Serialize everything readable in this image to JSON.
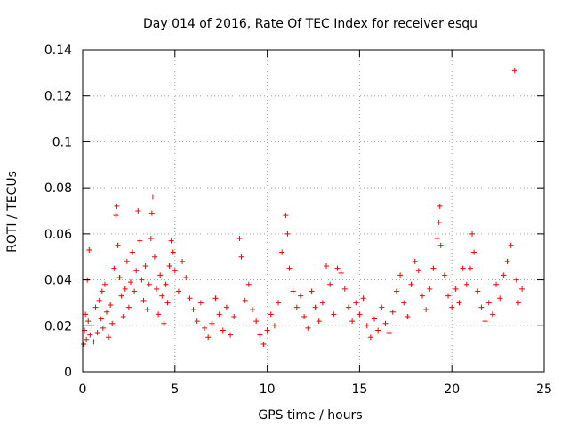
{
  "chart_data": {
    "type": "scatter",
    "title": "Day 014 of 2016, Rate Of TEC Index for receiver esqu",
    "xlabel": "GPS time / hours",
    "ylabel": "ROTI / TECUs",
    "xlim": [
      0,
      25
    ],
    "ylim": [
      0,
      0.14
    ],
    "xticks": [
      0,
      5,
      10,
      15,
      20,
      25
    ],
    "xtick_labels": [
      "0",
      "5",
      "10",
      "15",
      "20",
      "25"
    ],
    "yticks": [
      0,
      0.02,
      0.04,
      0.06,
      0.08,
      0.1,
      0.12,
      0.14
    ],
    "ytick_labels": [
      "0",
      "0.02",
      "0.04",
      "0.06",
      "0.08",
      "0.1",
      "0.12",
      "0.14"
    ],
    "grid": true,
    "marker": "plus",
    "color": "#ff0000",
    "series": [
      {
        "name": "ROTI",
        "points": [
          [
            0.05,
            0.012
          ],
          [
            0.1,
            0.018
          ],
          [
            0.15,
            0.025
          ],
          [
            0.2,
            0.014
          ],
          [
            0.25,
            0.04
          ],
          [
            0.3,
            0.022
          ],
          [
            0.35,
            0.053
          ],
          [
            0.4,
            0.016
          ],
          [
            0.5,
            0.02
          ],
          [
            0.6,
            0.013
          ],
          [
            0.7,
            0.028
          ],
          [
            0.8,
            0.017
          ],
          [
            0.9,
            0.031
          ],
          [
            1.0,
            0.023
          ],
          [
            1.05,
            0.035
          ],
          [
            1.1,
            0.019
          ],
          [
            1.2,
            0.038
          ],
          [
            1.3,
            0.026
          ],
          [
            1.4,
            0.015
          ],
          [
            1.5,
            0.029
          ],
          [
            1.6,
            0.021
          ],
          [
            1.7,
            0.045
          ],
          [
            1.8,
            0.068
          ],
          [
            1.85,
            0.072
          ],
          [
            1.9,
            0.055
          ],
          [
            2.0,
            0.041
          ],
          [
            2.1,
            0.033
          ],
          [
            2.2,
            0.024
          ],
          [
            2.3,
            0.036
          ],
          [
            2.4,
            0.048
          ],
          [
            2.5,
            0.028
          ],
          [
            2.6,
            0.039
          ],
          [
            2.7,
            0.052
          ],
          [
            2.8,
            0.035
          ],
          [
            2.9,
            0.044
          ],
          [
            3.0,
            0.07
          ],
          [
            3.1,
            0.057
          ],
          [
            3.2,
            0.04
          ],
          [
            3.3,
            0.031
          ],
          [
            3.4,
            0.046
          ],
          [
            3.5,
            0.027
          ],
          [
            3.6,
            0.038
          ],
          [
            3.7,
            0.058
          ],
          [
            3.75,
            0.069
          ],
          [
            3.8,
            0.076
          ],
          [
            3.9,
            0.05
          ],
          [
            4.0,
            0.036
          ],
          [
            4.1,
            0.025
          ],
          [
            4.2,
            0.042
          ],
          [
            4.3,
            0.033
          ],
          [
            4.4,
            0.021
          ],
          [
            4.5,
            0.038
          ],
          [
            4.6,
            0.03
          ],
          [
            4.7,
            0.046
          ],
          [
            4.8,
            0.057
          ],
          [
            4.9,
            0.052
          ],
          [
            5.0,
            0.044
          ],
          [
            5.2,
            0.035
          ],
          [
            5.4,
            0.048
          ],
          [
            5.6,
            0.041
          ],
          [
            5.8,
            0.032
          ],
          [
            6.0,
            0.027
          ],
          [
            6.2,
            0.022
          ],
          [
            6.4,
            0.03
          ],
          [
            6.6,
            0.019
          ],
          [
            6.8,
            0.015
          ],
          [
            7.0,
            0.021
          ],
          [
            7.2,
            0.032
          ],
          [
            7.4,
            0.025
          ],
          [
            7.6,
            0.018
          ],
          [
            7.8,
            0.028
          ],
          [
            8.0,
            0.016
          ],
          [
            8.2,
            0.024
          ],
          [
            8.5,
            0.058
          ],
          [
            8.6,
            0.05
          ],
          [
            8.8,
            0.031
          ],
          [
            9.0,
            0.038
          ],
          [
            9.2,
            0.027
          ],
          [
            9.4,
            0.022
          ],
          [
            9.6,
            0.016
          ],
          [
            9.8,
            0.012
          ],
          [
            10.0,
            0.018
          ],
          [
            10.2,
            0.025
          ],
          [
            10.4,
            0.02
          ],
          [
            10.6,
            0.03
          ],
          [
            10.8,
            0.052
          ],
          [
            11.0,
            0.068
          ],
          [
            11.1,
            0.06
          ],
          [
            11.2,
            0.045
          ],
          [
            11.4,
            0.035
          ],
          [
            11.6,
            0.028
          ],
          [
            11.8,
            0.033
          ],
          [
            12.0,
            0.024
          ],
          [
            12.2,
            0.019
          ],
          [
            12.4,
            0.035
          ],
          [
            12.6,
            0.028
          ],
          [
            12.8,
            0.022
          ],
          [
            13.0,
            0.03
          ],
          [
            13.2,
            0.046
          ],
          [
            13.4,
            0.038
          ],
          [
            13.6,
            0.025
          ],
          [
            13.8,
            0.045
          ],
          [
            14.0,
            0.043
          ],
          [
            14.2,
            0.036
          ],
          [
            14.4,
            0.028
          ],
          [
            14.6,
            0.022
          ],
          [
            14.8,
            0.03
          ],
          [
            15.0,
            0.025
          ],
          [
            15.2,
            0.032
          ],
          [
            15.4,
            0.02
          ],
          [
            15.6,
            0.015
          ],
          [
            15.8,
            0.023
          ],
          [
            16.0,
            0.018
          ],
          [
            16.2,
            0.028
          ],
          [
            16.4,
            0.021
          ],
          [
            16.6,
            0.017
          ],
          [
            16.8,
            0.026
          ],
          [
            17.0,
            0.035
          ],
          [
            17.2,
            0.042
          ],
          [
            17.4,
            0.03
          ],
          [
            17.6,
            0.024
          ],
          [
            17.8,
            0.038
          ],
          [
            18.0,
            0.048
          ],
          [
            18.2,
            0.044
          ],
          [
            18.4,
            0.033
          ],
          [
            18.6,
            0.027
          ],
          [
            18.8,
            0.036
          ],
          [
            19.0,
            0.045
          ],
          [
            19.2,
            0.058
          ],
          [
            19.3,
            0.065
          ],
          [
            19.35,
            0.072
          ],
          [
            19.4,
            0.055
          ],
          [
            19.6,
            0.042
          ],
          [
            19.8,
            0.033
          ],
          [
            20.0,
            0.028
          ],
          [
            20.2,
            0.036
          ],
          [
            20.4,
            0.03
          ],
          [
            20.6,
            0.045
          ],
          [
            20.8,
            0.038
          ],
          [
            21.0,
            0.045
          ],
          [
            21.1,
            0.06
          ],
          [
            21.2,
            0.052
          ],
          [
            21.4,
            0.035
          ],
          [
            21.6,
            0.028
          ],
          [
            21.8,
            0.022
          ],
          [
            22.0,
            0.03
          ],
          [
            22.2,
            0.025
          ],
          [
            22.4,
            0.038
          ],
          [
            22.6,
            0.032
          ],
          [
            22.8,
            0.042
          ],
          [
            23.0,
            0.048
          ],
          [
            23.2,
            0.055
          ],
          [
            23.4,
            0.131
          ],
          [
            23.5,
            0.04
          ],
          [
            23.6,
            0.03
          ],
          [
            23.8,
            0.036
          ]
        ]
      }
    ]
  }
}
